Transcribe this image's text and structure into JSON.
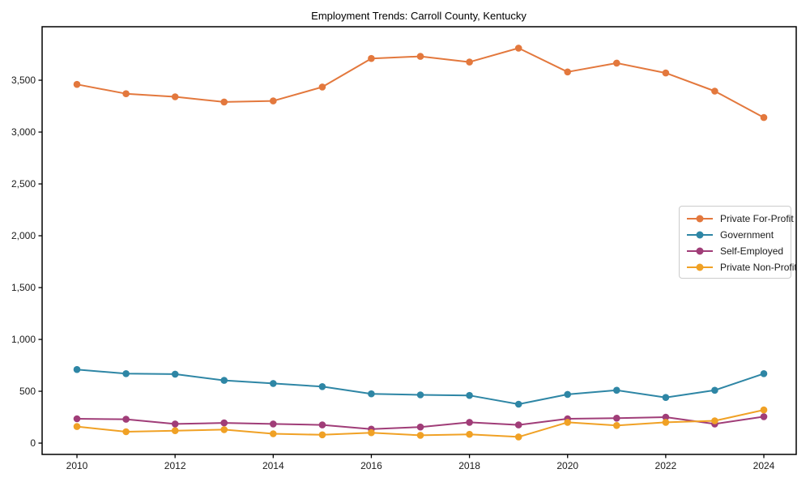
{
  "chart_data": {
    "type": "line",
    "title": "Employment Trends: Carroll County, Kentucky",
    "xlabel": "",
    "ylabel": "",
    "x": [
      2010,
      2011,
      2012,
      2013,
      2014,
      2015,
      2016,
      2017,
      2018,
      2019,
      2020,
      2021,
      2022,
      2023,
      2024
    ],
    "series": [
      {
        "name": "Private For-Profit",
        "color": "#e3783d",
        "values": [
          3460,
          3370,
          3340,
          3290,
          3300,
          3435,
          3710,
          3730,
          3675,
          3810,
          3580,
          3665,
          3570,
          3395,
          3140
        ]
      },
      {
        "name": "Government",
        "color": "#2e86a5",
        "values": [
          710,
          670,
          665,
          605,
          575,
          545,
          475,
          465,
          460,
          375,
          470,
          510,
          440,
          510,
          670
        ]
      },
      {
        "name": "Self-Employed",
        "color": "#a03d78",
        "values": [
          235,
          230,
          185,
          195,
          185,
          175,
          135,
          155,
          200,
          175,
          235,
          240,
          250,
          185,
          255
        ]
      },
      {
        "name": "Private Non-Profit",
        "color": "#f0a125",
        "values": [
          160,
          110,
          120,
          130,
          90,
          80,
          100,
          75,
          85,
          60,
          200,
          170,
          200,
          215,
          320
        ]
      }
    ],
    "xticks": [
      2010,
      2012,
      2014,
      2016,
      2018,
      2020,
      2022,
      2024
    ],
    "yticks": [
      0,
      500,
      1000,
      1500,
      2000,
      2500,
      3000,
      3500
    ],
    "xlim": [
      2009.29,
      2024.66
    ],
    "ylim": [
      -109,
      4016
    ],
    "grid": false,
    "legend_position": "center-right",
    "axis_color": "#000000",
    "marker": "circle",
    "marker_radius": 4.3,
    "line_width": 2
  }
}
